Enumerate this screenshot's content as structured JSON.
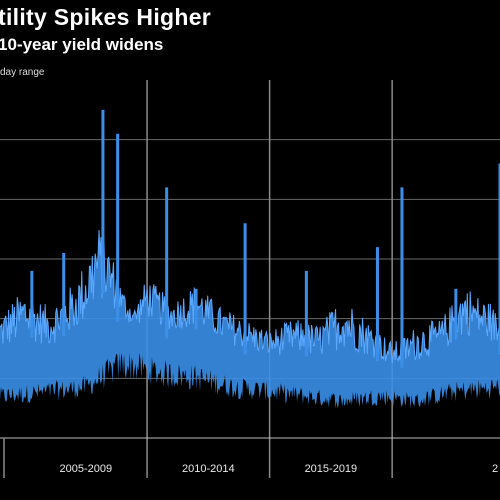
{
  "header": {
    "title": "tility Spikes Higher",
    "subtitle": "10-year yield widens",
    "unit_label": "day range"
  },
  "colors": {
    "background": "#000000",
    "series": "#3b8fe8",
    "grid": "#6a6a6a"
  },
  "chart_data": {
    "type": "area",
    "title": "tility Spikes Higher",
    "subtitle": "10-year yield widens",
    "ylabel": "day range",
    "ylim": [
      0,
      30
    ],
    "xlim": [
      2004.0,
      2024.4
    ],
    "grid": true,
    "x_ticks": [
      {
        "label": "2005-2009",
        "center": 2007.5
      },
      {
        "label": "2010-2014",
        "center": 2012.5
      },
      {
        "label": "2015-2019",
        "center": 2017.5
      },
      {
        "label": "2",
        "center": 2024.2
      }
    ],
    "x_dividers": [
      2010.0,
      2015.0,
      2020.0
    ],
    "baseline": {
      "x": [
        2004.0,
        2006.0,
        2007.5,
        2009.0,
        2010.5,
        2012.0,
        2013.5,
        2015.0,
        2016.5,
        2018.0,
        2019.5,
        2021.0,
        2022.5,
        2024.4
      ],
      "y": [
        4.5,
        5.0,
        5.5,
        8.0,
        7.0,
        6.5,
        5.5,
        5.0,
        4.5,
        4.0,
        4.5,
        4.0,
        5.0,
        5.5
      ]
    },
    "envelope": {
      "x": [
        2004.0,
        2005.0,
        2006.0,
        2007.0,
        2007.5,
        2008.0,
        2008.5,
        2009.0,
        2009.5,
        2010.0,
        2011.0,
        2012.0,
        2012.5,
        2013.0,
        2014.0,
        2015.0,
        2016.0,
        2017.0,
        2018.0,
        2019.0,
        2020.0,
        2020.5,
        2021.0,
        2022.0,
        2022.5,
        2023.0,
        2023.5,
        2024.0,
        2024.4
      ],
      "y": [
        10.5,
        12.5,
        11.0,
        13.0,
        15.0,
        18.0,
        16.0,
        12.5,
        11.0,
        13.5,
        11.5,
        13.0,
        12.0,
        11.0,
        10.0,
        9.0,
        10.0,
        9.5,
        12.0,
        10.0,
        8.0,
        8.5,
        9.5,
        10.0,
        11.5,
        13.0,
        12.0,
        11.5,
        10.0
      ]
    },
    "spikes": [
      {
        "x": 2005.3,
        "y": 14.0
      },
      {
        "x": 2006.6,
        "y": 15.5
      },
      {
        "x": 2008.2,
        "y": 27.5
      },
      {
        "x": 2008.8,
        "y": 25.5
      },
      {
        "x": 2010.8,
        "y": 21.0
      },
      {
        "x": 2012.0,
        "y": 12.5
      },
      {
        "x": 2014.0,
        "y": 18.0
      },
      {
        "x": 2016.5,
        "y": 14.0
      },
      {
        "x": 2019.4,
        "y": 16.0
      },
      {
        "x": 2020.4,
        "y": 21.0
      },
      {
        "x": 2022.6,
        "y": 12.5
      },
      {
        "x": 2024.4,
        "y": 23.0
      }
    ]
  }
}
